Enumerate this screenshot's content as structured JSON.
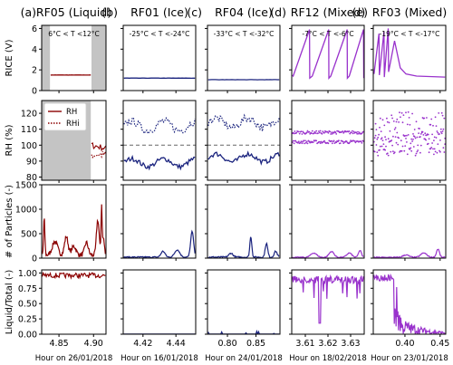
{
  "chart_data": {
    "type": "line",
    "panel_labels": [
      "(a)",
      "(b)",
      "(c)",
      "(d)",
      "(e)"
    ],
    "row_ylabels": [
      "RICE (V)",
      "RH (%)",
      "# of Particles (-)",
      "Liquid/Total (-)"
    ],
    "row_yticks": [
      [
        0,
        2,
        4,
        6
      ],
      [
        80,
        90,
        100,
        110,
        120
      ],
      [
        0,
        500,
        1000,
        1500
      ],
      [
        0.0,
        0.25,
        0.5,
        0.75,
        1.0
      ]
    ],
    "row_ytick_labels": [
      [
        "0",
        "2",
        "4",
        "6"
      ],
      [
        "80",
        "90",
        "100",
        "110",
        "120"
      ],
      [
        "0",
        "500",
        "1000",
        "1500"
      ],
      [
        "0.00",
        "0.25",
        "0.50",
        "0.75",
        "1.00"
      ]
    ],
    "row_ylims": [
      [
        0,
        6.3
      ],
      [
        78,
        128
      ],
      [
        0,
        1500
      ],
      [
        0,
        1.05
      ]
    ],
    "legend": {
      "entries": [
        "RH",
        "RHi"
      ],
      "location": "upper-left",
      "panel": 0,
      "row": 1
    },
    "columns": [
      {
        "title": "RF05 (Liquid)",
        "temp_range": "6°C < T <12°C",
        "color": "#8b0000",
        "xlim": [
          4.825,
          4.918
        ],
        "xticks": [
          4.85,
          4.9
        ],
        "xtick_labels": [
          "4.85",
          "4.90"
        ],
        "xlabel": "Hour on 26/01/2018",
        "shaded_x": [
          [
            4.825,
            4.837
          ],
          [
            4.897,
            4.918
          ]
        ],
        "rice_style": "flat",
        "rice_level": 1.5,
        "rice_range": [
          4.838,
          4.896
        ],
        "rh_style": "liquid",
        "rh_range": [
          4.897,
          4.918
        ],
        "particles_style": "rf05",
        "frac_style": "rf05"
      },
      {
        "title": "RF01 (Ice)",
        "temp_range": "-25°C < T <-24°C",
        "color": "#1a237e",
        "xlim": [
          4.408,
          4.452
        ],
        "xticks": [
          4.42,
          4.44
        ],
        "xtick_labels": [
          "4.42",
          "4.44"
        ],
        "xlabel": "Hour on 16/01/2018",
        "shaded_x": [],
        "rice_style": "flat",
        "rice_level": 1.2,
        "rh_style": "ice",
        "rh_level": 89,
        "rhi_level": 112,
        "particles_style": "rf01",
        "frac_style": "zero"
      },
      {
        "title": "RF04 (Ice)",
        "temp_range": "-33°C < T <-32°C",
        "color": "#1a237e",
        "xlim": [
          0.765,
          0.892
        ],
        "xticks": [
          0.8,
          0.85
        ],
        "xtick_labels": [
          "0.80",
          "0.85"
        ],
        "xlabel": "Hour on 24/01/2018",
        "shaded_x": [],
        "rice_style": "flat",
        "rice_level": 1.05,
        "rh_style": "ice",
        "rh_level": 92,
        "rhi_level": 114,
        "particles_style": "rf04",
        "frac_style": "nearzero"
      },
      {
        "title": "RF12 (Mixed)",
        "temp_range": "-7°C < T <-6°C",
        "color": "#9932cc",
        "xlim": [
          3.604,
          3.636
        ],
        "xticks": [
          3.61,
          3.62,
          3.63
        ],
        "xtick_labels": [
          "3.61",
          "3.62",
          "3.63"
        ],
        "xlabel": "Hour on 18/02/2018",
        "shaded_x": [],
        "rice_style": "sawtooth12",
        "rh_style": "mixed",
        "rh_level": 102,
        "rhi_level": 108,
        "particles_style": "rf12",
        "frac_style": "rf12"
      },
      {
        "title": "RF03 (Mixed)",
        "temp_range": "-19°C < T <-17°C",
        "color": "#9932cc",
        "xlim": [
          0.355,
          0.458
        ],
        "xticks": [
          0.4,
          0.45
        ],
        "xtick_labels": [
          "0.40",
          "0.45"
        ],
        "xlabel": "Hour on 23/01/2018",
        "shaded_x": [],
        "rice_style": "sawtooth03",
        "rh_style": "mixedwide",
        "rh_level": 101,
        "rhi_level": 115,
        "particles_style": "rf03",
        "frac_style": "rf03"
      }
    ]
  }
}
